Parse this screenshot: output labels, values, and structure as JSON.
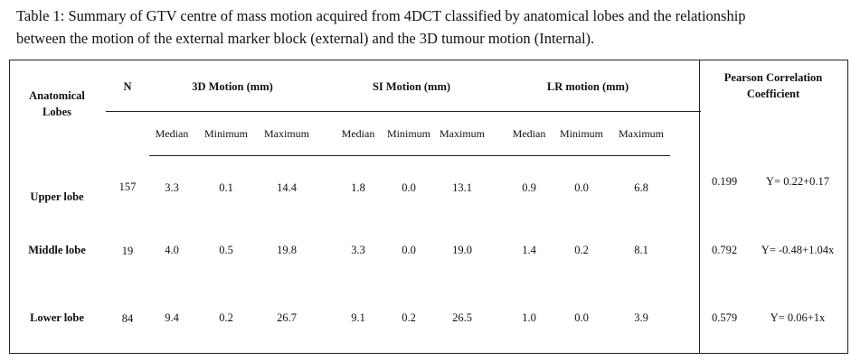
{
  "caption": {
    "line1": "Table 1: Summary of GTV centre of mass motion acquired from 4DCT classified by anatomical lobes and the relationship",
    "line2": "between the motion of the external marker block (external) and the 3D tumour motion (Internal)."
  },
  "headers": {
    "lobes_line1": "Anatomical",
    "lobes_line2": "Lobes",
    "n": "N",
    "motion3d": "3D Motion (mm)",
    "si": "SI Motion (mm)",
    "lr": "LR motion (mm)",
    "pearson_line1": "Pearson Correlation",
    "pearson_line2": "Coefficient"
  },
  "subheaders": [
    "Median",
    "Minimum",
    "Maximum",
    "Median",
    "Minimum",
    "Maximum",
    "Median",
    "Minimum",
    "Maximum"
  ],
  "rows": [
    {
      "lobe": "Upper lobe",
      "n": "157",
      "values": [
        "3.3",
        "0.1",
        "14.4",
        "1.8",
        "0.0",
        "13.1",
        "0.9",
        "0.0",
        "6.8"
      ],
      "r": "0.199",
      "eq": "Y= 0.22+0.17"
    },
    {
      "lobe": "Middle lobe",
      "n": "19",
      "values": [
        "4.0",
        "0.5",
        "19.8",
        "3.3",
        "0.0",
        "19.0",
        "1.4",
        "0.2",
        "8.1"
      ],
      "r": "0.792",
      "eq": "Y= -0.48+1.04x"
    },
    {
      "lobe": "Lower lobe",
      "n": "84",
      "values": [
        "9.4",
        "0.2",
        "26.7",
        "9.1",
        "0.2",
        "26.5",
        "1.0",
        "0.0",
        "3.9"
      ],
      "r": "0.579",
      "eq": "Y= 0.06+1x"
    }
  ]
}
